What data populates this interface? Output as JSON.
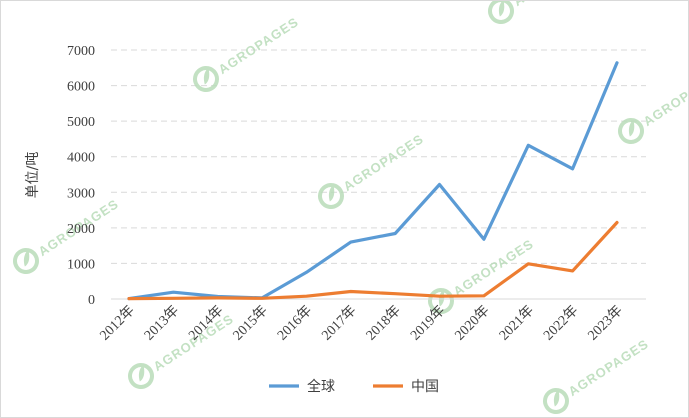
{
  "chart_data": {
    "type": "line",
    "title": "",
    "xlabel": "",
    "ylabel": "单位/吨",
    "categories": [
      "2012年",
      "2013年",
      "2014年",
      "2015年",
      "2016年",
      "2017年",
      "2018年",
      "2019年",
      "2020年",
      "2021年",
      "2022年",
      "2023年"
    ],
    "ylim": [
      0,
      7000
    ],
    "yticks": [
      0,
      1000,
      2000,
      3000,
      4000,
      5000,
      6000,
      7000
    ],
    "grid": "horizontal-dashed",
    "legend": "bottom-center",
    "series": [
      {
        "name": "全球",
        "color": "#5b9bd5",
        "values": [
          10,
          190,
          70,
          30,
          750,
          1600,
          1840,
          3220,
          1680,
          4320,
          3660,
          6640
        ]
      },
      {
        "name": "中国",
        "color": "#ed7d31",
        "values": [
          10,
          20,
          30,
          20,
          80,
          210,
          150,
          80,
          90,
          990,
          790,
          2150
        ]
      }
    ]
  },
  "watermark": {
    "text": "AGROPAGES",
    "color": "#b9dcb9"
  }
}
